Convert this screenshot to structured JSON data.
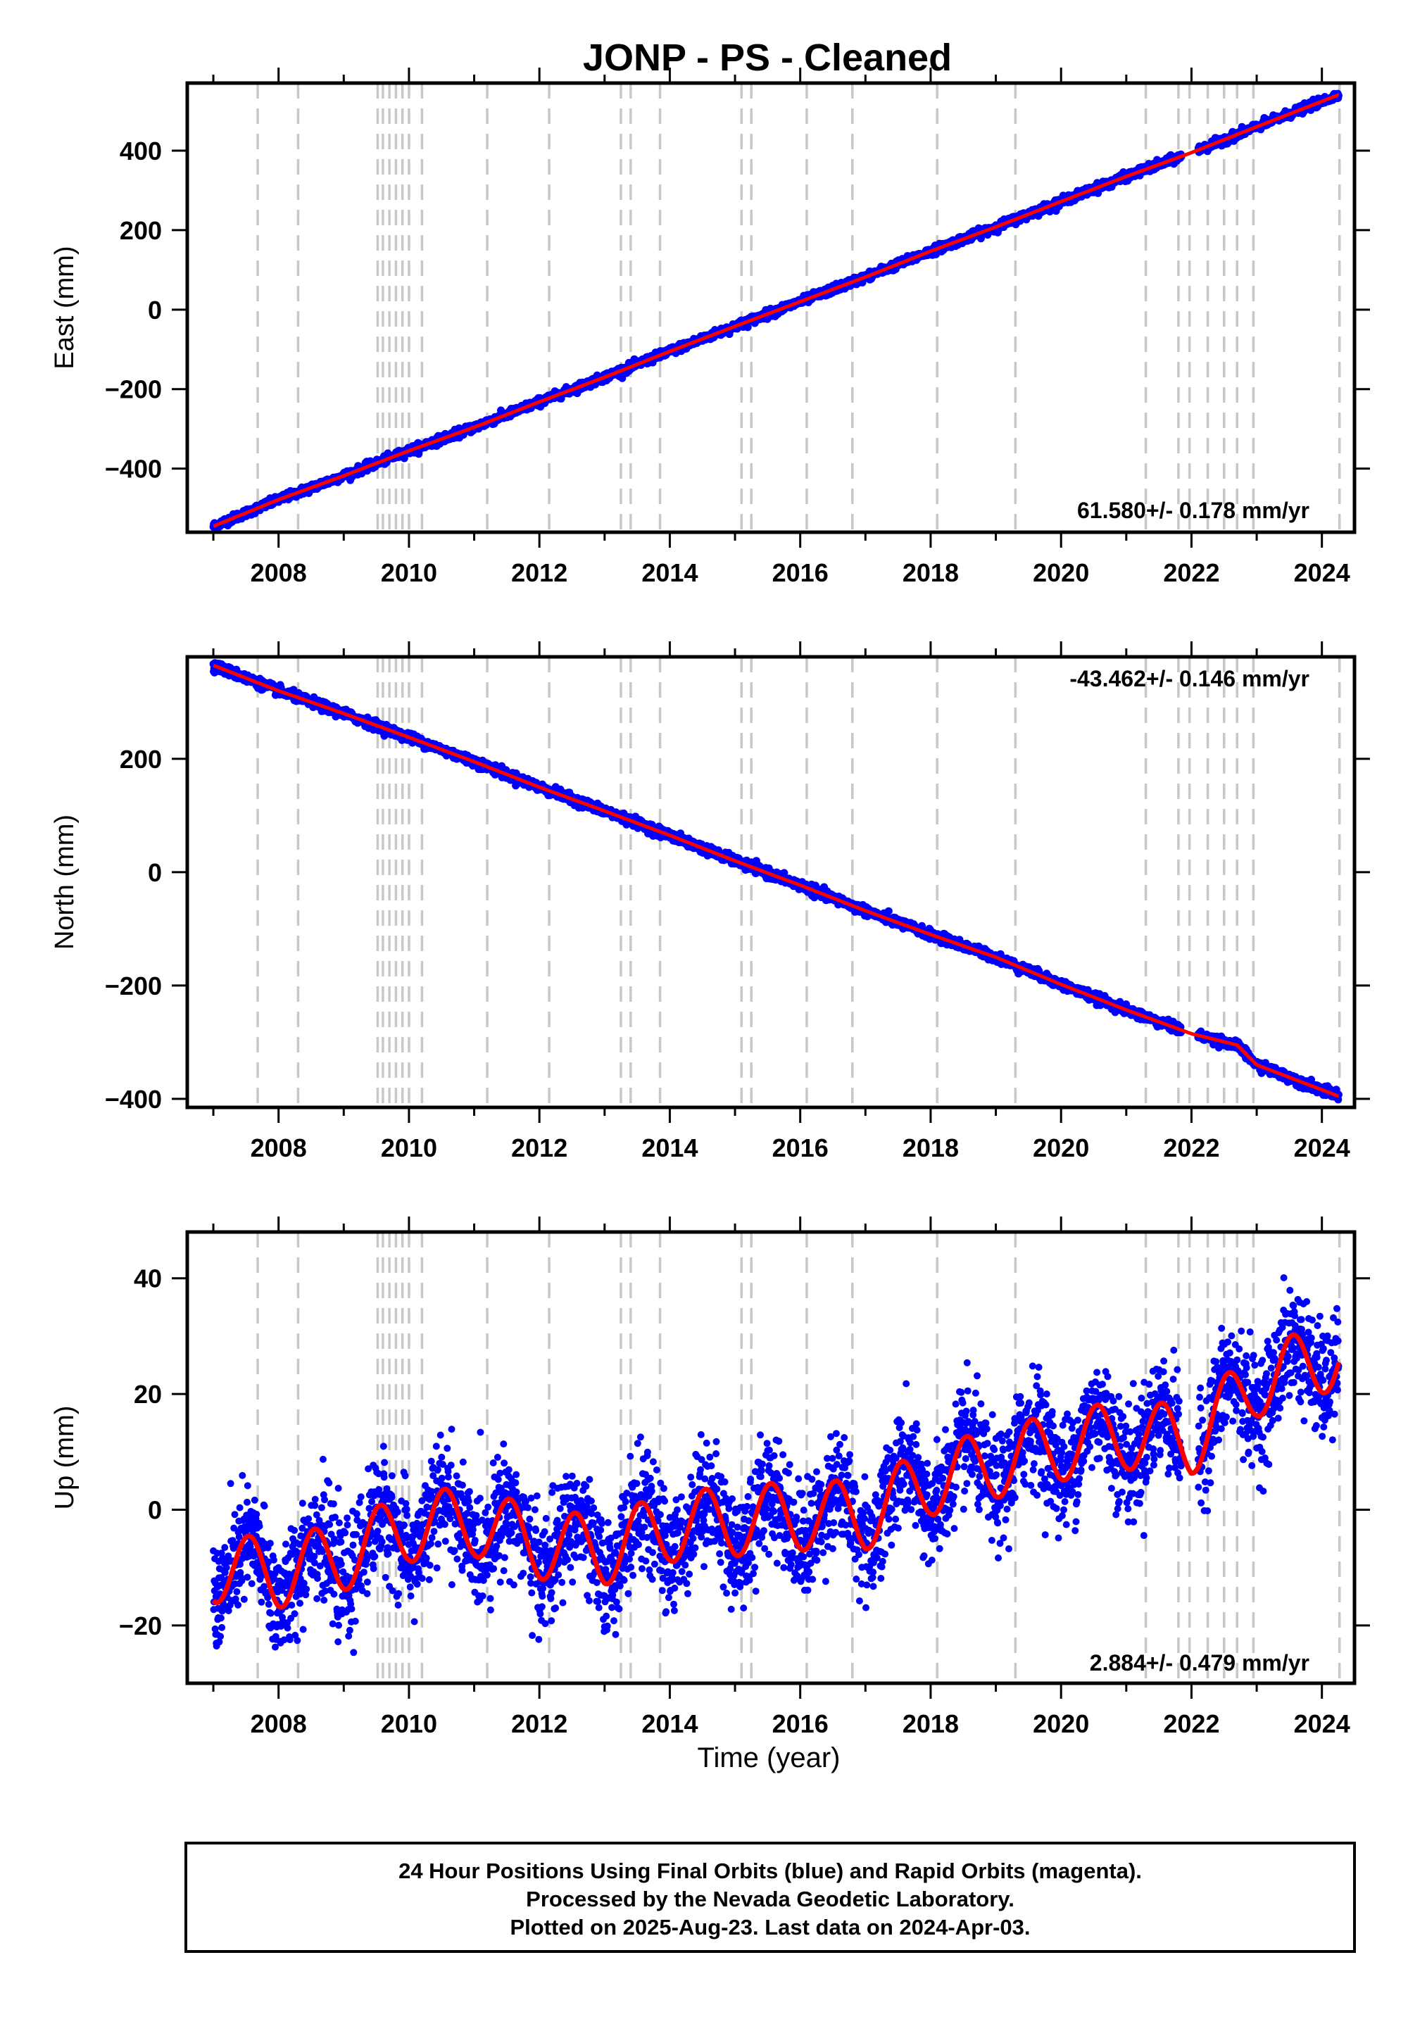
{
  "title": "JONP  - PS - Cleaned",
  "xlabel": "Time (year)",
  "footer": [
    "24 Hour Positions Using Final Orbits (blue) and Rapid Orbits (magenta).",
    "Processed by the Nevada Geodetic Laboratory.",
    "Plotted on 2025-Aug-23. Last data on 2024-Apr-03."
  ],
  "colors": {
    "data": "#0000ff",
    "model": "#ff0000",
    "breaks": "#c8c8c8"
  },
  "chart_data": [
    {
      "type": "scatter",
      "ylabel": "East (mm)",
      "rate": "61.580+/- 0.178 mm/yr",
      "xlim": [
        2006.6,
        2024.5
      ],
      "ylim": [
        -560,
        570
      ],
      "xticks": [
        "2008",
        "2010",
        "2012",
        "2014",
        "2016",
        "2018",
        "2020",
        "2022",
        "2024"
      ],
      "yticks": [
        -400,
        -200,
        0,
        200,
        400
      ],
      "ytick_labels": [
        "−400",
        "−200",
        "0",
        "200",
        "400"
      ],
      "series": [
        {
          "x": [
            2007.0,
            2008.0,
            2009.0,
            2010.0,
            2011.0,
            2012.0,
            2013.0,
            2014.0,
            2015.0,
            2016.0,
            2017.0,
            2018.0,
            2019.0,
            2020.0,
            2021.0,
            2022.0,
            2023.0,
            2024.25
          ],
          "y": [
            -545,
            -478,
            -418,
            -355,
            -296,
            -232,
            -170,
            -105,
            -42,
            20,
            82,
            147,
            208,
            272,
            335,
            395,
            460,
            540
          ]
        }
      ]
    },
    {
      "type": "scatter",
      "ylabel": "North (mm)",
      "rate": "-43.462+/- 0.146 mm/yr",
      "xlim": [
        2006.6,
        2024.5
      ],
      "ylim": [
        -415,
        380
      ],
      "xticks": [
        "2008",
        "2010",
        "2012",
        "2014",
        "2016",
        "2018",
        "2020",
        "2022",
        "2024"
      ],
      "yticks": [
        -400,
        -200,
        0,
        200
      ],
      "ytick_labels": [
        "−400",
        "−200",
        "0",
        "200"
      ],
      "series": [
        {
          "x": [
            2007.0,
            2008.0,
            2009.0,
            2010.0,
            2011.0,
            2012.0,
            2013.0,
            2014.0,
            2015.0,
            2016.0,
            2017.0,
            2018.0,
            2019.0,
            2020.0,
            2021.0,
            2022.0,
            2022.7,
            2023.0,
            2024.25
          ],
          "y": [
            365,
            320,
            280,
            238,
            195,
            150,
            108,
            65,
            20,
            -23,
            -68,
            -110,
            -150,
            -198,
            -243,
            -285,
            -305,
            -340,
            -395
          ]
        }
      ]
    },
    {
      "type": "scatter",
      "ylabel": "Up (mm)",
      "rate": "2.884+/- 0.479 mm/yr",
      "xlim": [
        2006.6,
        2024.5
      ],
      "ylim": [
        -30,
        48
      ],
      "xticks": [
        "2008",
        "2010",
        "2012",
        "2014",
        "2016",
        "2018",
        "2020",
        "2022",
        "2024"
      ],
      "yticks": [
        -20,
        0,
        20,
        40
      ],
      "ytick_labels": [
        "−20",
        "0",
        "20",
        "40"
      ],
      "series": [
        {
          "x": [
            2007.0,
            2008.0,
            2009.0,
            2010.0,
            2011.0,
            2012.0,
            2013.0,
            2014.0,
            2015.0,
            2016.0,
            2017.0,
            2018.0,
            2019.0,
            2020.0,
            2021.0,
            2022.0,
            2023.0,
            2024.25
          ],
          "y": [
            -10,
            -11,
            -8,
            -3,
            -2,
            -6,
            -7,
            -3,
            -2,
            -1,
            -1,
            5,
            8,
            11,
            13,
            12,
            22,
            27
          ]
        }
      ]
    }
  ]
}
